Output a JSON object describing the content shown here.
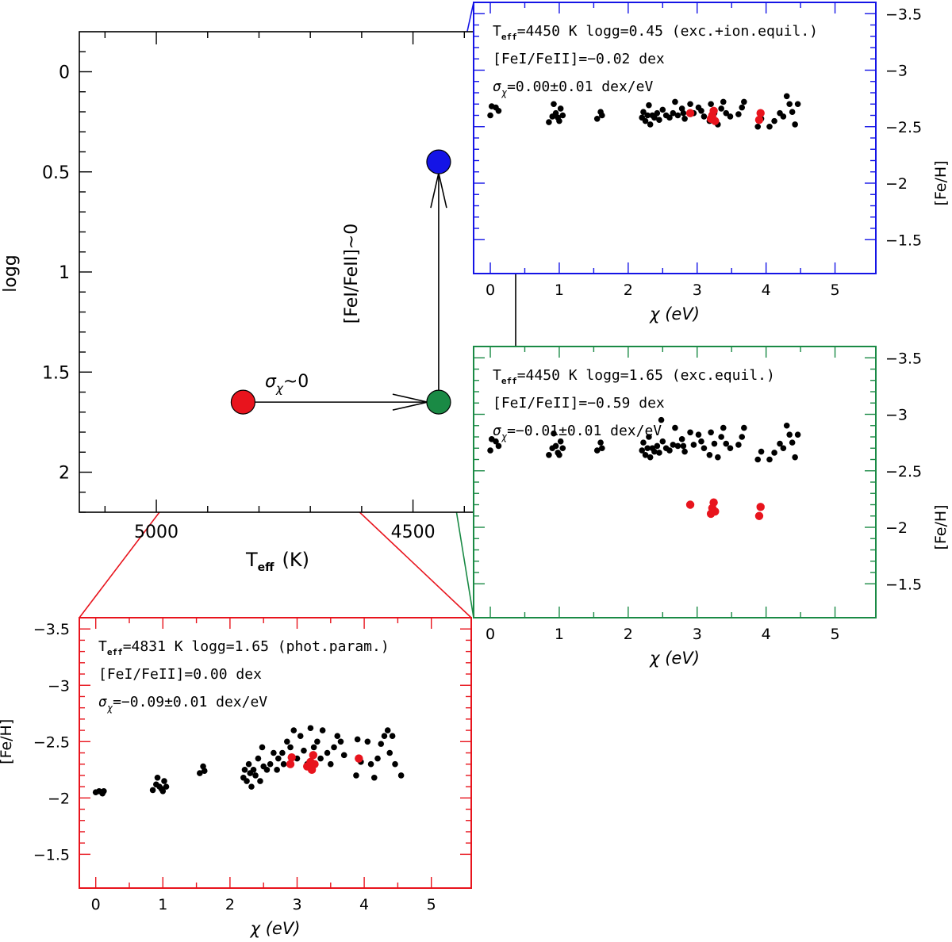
{
  "colors": {
    "red": "#e8141d",
    "green": "#1a8a45",
    "blue": "#1414e6",
    "black": "#000000"
  },
  "chart_data": [
    {
      "type": "scatter",
      "id": "hr",
      "xlabel": "T",
      "xlabel_sub": "eff",
      "xlabel_unit": "(K)",
      "ylabel": "logg",
      "xlim": [
        5150,
        4300
      ],
      "ylim": [
        -0.2,
        2.2
      ],
      "xticklabels": [
        "5000",
        "4500"
      ],
      "yticklabels": [
        "0",
        "0.5",
        "1",
        "1.5",
        "2"
      ],
      "points": [
        {
          "name": "phot",
          "teff": 4831,
          "logg": 1.65,
          "color": "red"
        },
        {
          "name": "exc",
          "teff": 4450,
          "logg": 1.65,
          "color": "green"
        },
        {
          "name": "exc-ion",
          "teff": 4450,
          "logg": 0.45,
          "color": "blue"
        }
      ],
      "arrows": [
        {
          "label": "σ",
          "label_sub": "χ",
          "label_tail": "~0"
        },
        {
          "label": "[FeI/FeII]~0"
        }
      ]
    },
    {
      "type": "scatter",
      "id": "blue",
      "border_color": "blue",
      "xlabel": "χ (eV)",
      "ylabel": "[Fe/H]",
      "xlim": [
        -0.15,
        5.5
      ],
      "ylim": [
        -3.6,
        -1.2
      ],
      "xticklabels": [
        "0",
        "1",
        "2",
        "3",
        "4",
        "5"
      ],
      "yticklabels": [
        "−1.5",
        "−2",
        "−2.5",
        "−3",
        "−3.5"
      ],
      "annotations": {
        "line1": {
          "a": "T",
          "sub": "eff",
          "b": "=4450 K logg=0.45 (exc.+ion.equil.)"
        },
        "line2": "[FeI/FeII]=−0.02 dex",
        "line3": {
          "a": "σ",
          "sub": "χ",
          "b": "=0.00±0.01 dex/eV"
        }
      },
      "feI": [
        [
          0,
          -2.6
        ],
        [
          0.02,
          -2.68
        ],
        [
          0.08,
          -2.67
        ],
        [
          0.12,
          -2.64
        ],
        [
          0.85,
          -2.54
        ],
        [
          0.9,
          -2.59
        ],
        [
          0.92,
          -2.7
        ],
        [
          0.95,
          -2.62
        ],
        [
          0.98,
          -2.58
        ],
        [
          1.0,
          -2.55
        ],
        [
          1.02,
          -2.66
        ],
        [
          1.05,
          -2.6
        ],
        [
          1.55,
          -2.57
        ],
        [
          1.6,
          -2.63
        ],
        [
          1.62,
          -2.6
        ],
        [
          2.2,
          -2.58
        ],
        [
          2.22,
          -2.63
        ],
        [
          2.25,
          -2.55
        ],
        [
          2.28,
          -2.6
        ],
        [
          2.3,
          -2.69
        ],
        [
          2.32,
          -2.52
        ],
        [
          2.35,
          -2.6
        ],
        [
          2.38,
          -2.58
        ],
        [
          2.42,
          -2.62
        ],
        [
          2.45,
          -2.56
        ],
        [
          2.5,
          -2.65
        ],
        [
          2.55,
          -2.6
        ],
        [
          2.6,
          -2.58
        ],
        [
          2.65,
          -2.62
        ],
        [
          2.68,
          -2.72
        ],
        [
          2.72,
          -2.6
        ],
        [
          2.78,
          -2.66
        ],
        [
          2.8,
          -2.62
        ],
        [
          2.82,
          -2.57
        ],
        [
          2.9,
          -2.7
        ],
        [
          2.95,
          -2.62
        ],
        [
          3.02,
          -2.67
        ],
        [
          3.06,
          -2.64
        ],
        [
          3.1,
          -2.59
        ],
        [
          3.18,
          -2.55
        ],
        [
          3.2,
          -2.7
        ],
        [
          3.25,
          -2.62
        ],
        [
          3.3,
          -2.52
        ],
        [
          3.35,
          -2.66
        ],
        [
          3.38,
          -2.72
        ],
        [
          3.42,
          -2.62
        ],
        [
          3.48,
          -2.59
        ],
        [
          3.6,
          -2.61
        ],
        [
          3.65,
          -2.67
        ],
        [
          3.68,
          -2.72
        ],
        [
          3.88,
          -2.5
        ],
        [
          3.93,
          -2.57
        ],
        [
          4.05,
          -2.5
        ],
        [
          4.12,
          -2.55
        ],
        [
          4.2,
          -2.62
        ],
        [
          4.25,
          -2.59
        ],
        [
          4.3,
          -2.77
        ],
        [
          4.34,
          -2.7
        ],
        [
          4.38,
          -2.63
        ],
        [
          4.42,
          -2.52
        ],
        [
          4.46,
          -2.7
        ]
      ],
      "feII": [
        [
          2.9,
          -2.62
        ],
        [
          3.2,
          -2.57
        ],
        [
          3.22,
          -2.6
        ],
        [
          3.24,
          -2.64
        ],
        [
          3.26,
          -2.55
        ],
        [
          3.9,
          -2.56
        ],
        [
          3.92,
          -2.62
        ]
      ]
    },
    {
      "type": "scatter",
      "id": "green",
      "border_color": "green",
      "xlabel": "χ (eV)",
      "ylabel": "[Fe/H]",
      "xlim": [
        -0.15,
        5.5
      ],
      "ylim": [
        -3.6,
        -1.2
      ],
      "xticklabels": [
        "0",
        "1",
        "2",
        "3",
        "4",
        "5"
      ],
      "yticklabels": [
        "−1.5",
        "−2",
        "−2.5",
        "−3",
        "−3.5"
      ],
      "annotations": {
        "line1": {
          "a": "T",
          "sub": "eff",
          "b": "=4450 K logg=1.65 (exc.equil.)"
        },
        "line2": "[FeI/FeII]=−0.59 dex",
        "line3": {
          "a": "σ",
          "sub": "χ",
          "b": "=−0.01±0.01 dex/eV"
        }
      },
      "feI": [
        [
          0,
          -2.68
        ],
        [
          0.02,
          -2.78
        ],
        [
          0.08,
          -2.76
        ],
        [
          0.12,
          -2.72
        ],
        [
          0.85,
          -2.64
        ],
        [
          0.9,
          -2.7
        ],
        [
          0.92,
          -2.83
        ],
        [
          0.95,
          -2.72
        ],
        [
          0.98,
          -2.66
        ],
        [
          1.0,
          -2.64
        ],
        [
          1.02,
          -2.76
        ],
        [
          1.05,
          -2.7
        ],
        [
          1.55,
          -2.68
        ],
        [
          1.6,
          -2.75
        ],
        [
          1.62,
          -2.7
        ],
        [
          2.2,
          -2.68
        ],
        [
          2.22,
          -2.75
        ],
        [
          2.25,
          -2.64
        ],
        [
          2.28,
          -2.7
        ],
        [
          2.3,
          -2.8
        ],
        [
          2.32,
          -2.62
        ],
        [
          2.35,
          -2.7
        ],
        [
          2.38,
          -2.67
        ],
        [
          2.42,
          -2.72
        ],
        [
          2.45,
          -2.66
        ],
        [
          2.48,
          -2.95
        ],
        [
          2.5,
          -2.76
        ],
        [
          2.55,
          -2.7
        ],
        [
          2.6,
          -2.68
        ],
        [
          2.65,
          -2.73
        ],
        [
          2.68,
          -2.88
        ],
        [
          2.72,
          -2.72
        ],
        [
          2.78,
          -2.78
        ],
        [
          2.8,
          -2.72
        ],
        [
          2.82,
          -2.67
        ],
        [
          2.9,
          -2.84
        ],
        [
          2.95,
          -2.73
        ],
        [
          3.02,
          -2.82
        ],
        [
          3.06,
          -2.76
        ],
        [
          3.1,
          -2.7
        ],
        [
          3.18,
          -2.64
        ],
        [
          3.2,
          -2.84
        ],
        [
          3.25,
          -2.74
        ],
        [
          3.3,
          -2.62
        ],
        [
          3.35,
          -2.8
        ],
        [
          3.38,
          -2.88
        ],
        [
          3.42,
          -2.74
        ],
        [
          3.48,
          -2.7
        ],
        [
          3.6,
          -2.73
        ],
        [
          3.65,
          -2.8
        ],
        [
          3.68,
          -2.88
        ],
        [
          3.88,
          -2.6
        ],
        [
          3.93,
          -2.67
        ],
        [
          4.05,
          -2.6
        ],
        [
          4.12,
          -2.66
        ],
        [
          4.2,
          -2.74
        ],
        [
          4.25,
          -2.7
        ],
        [
          4.3,
          -2.9
        ],
        [
          4.34,
          -2.82
        ],
        [
          4.38,
          -2.75
        ],
        [
          4.42,
          -2.62
        ],
        [
          4.46,
          -2.82
        ]
      ],
      "feII": [
        [
          2.9,
          -2.2
        ],
        [
          3.2,
          -2.12
        ],
        [
          3.22,
          -2.17
        ],
        [
          3.24,
          -2.22
        ],
        [
          3.26,
          -2.14
        ],
        [
          3.9,
          -2.1
        ],
        [
          3.92,
          -2.18
        ]
      ]
    },
    {
      "type": "scatter",
      "id": "red",
      "border_color": "red",
      "xlabel": "χ (eV)",
      "ylabel": "[Fe/H]",
      "xlim": [
        -0.15,
        5.5
      ],
      "ylim": [
        -3.6,
        -1.2
      ],
      "xticklabels": [
        "0",
        "1",
        "2",
        "3",
        "4",
        "5"
      ],
      "yticklabels": [
        "−1.5",
        "−2",
        "−2.5",
        "−3",
        "−3.5"
      ],
      "annotations": {
        "line1": {
          "a": "T",
          "sub": "eff",
          "b": "=4831 K logg=1.65 (phot.param.)"
        },
        "line2": "[FeI/FeII]=0.00 dex",
        "line3": {
          "a": "σ",
          "sub": "χ",
          "b": "=−0.09±0.01 dex/eV"
        }
      },
      "feI": [
        [
          0,
          -2.05
        ],
        [
          0.05,
          -2.06
        ],
        [
          0.1,
          -2.04
        ],
        [
          0.12,
          -2.06
        ],
        [
          0.85,
          -2.07
        ],
        [
          0.9,
          -2.12
        ],
        [
          0.92,
          -2.18
        ],
        [
          0.95,
          -2.1
        ],
        [
          0.98,
          -2.08
        ],
        [
          1.0,
          -2.06
        ],
        [
          1.02,
          -2.15
        ],
        [
          1.05,
          -2.1
        ],
        [
          1.55,
          -2.22
        ],
        [
          1.6,
          -2.28
        ],
        [
          1.62,
          -2.24
        ],
        [
          2.2,
          -2.18
        ],
        [
          2.22,
          -2.25
        ],
        [
          2.25,
          -2.15
        ],
        [
          2.28,
          -2.3
        ],
        [
          2.3,
          -2.22
        ],
        [
          2.32,
          -2.1
        ],
        [
          2.35,
          -2.25
        ],
        [
          2.38,
          -2.2
        ],
        [
          2.42,
          -2.35
        ],
        [
          2.45,
          -2.15
        ],
        [
          2.48,
          -2.45
        ],
        [
          2.5,
          -2.28
        ],
        [
          2.55,
          -2.25
        ],
        [
          2.6,
          -2.3
        ],
        [
          2.65,
          -2.4
        ],
        [
          2.7,
          -2.25
        ],
        [
          2.72,
          -2.35
        ],
        [
          2.78,
          -2.4
        ],
        [
          2.8,
          -2.3
        ],
        [
          2.85,
          -2.5
        ],
        [
          2.9,
          -2.45
        ],
        [
          2.95,
          -2.6
        ],
        [
          3.0,
          -2.35
        ],
        [
          3.05,
          -2.55
        ],
        [
          3.1,
          -2.42
        ],
        [
          3.15,
          -2.3
        ],
        [
          3.2,
          -2.62
        ],
        [
          3.25,
          -2.45
        ],
        [
          3.3,
          -2.5
        ],
        [
          3.35,
          -2.35
        ],
        [
          3.38,
          -2.6
        ],
        [
          3.45,
          -2.4
        ],
        [
          3.5,
          -2.3
        ],
        [
          3.55,
          -2.45
        ],
        [
          3.6,
          -2.55
        ],
        [
          3.65,
          -2.5
        ],
        [
          3.7,
          -2.38
        ],
        [
          3.88,
          -2.2
        ],
        [
          3.9,
          -2.52
        ],
        [
          3.95,
          -2.32
        ],
        [
          4.05,
          -2.5
        ],
        [
          4.1,
          -2.3
        ],
        [
          4.15,
          -2.18
        ],
        [
          4.2,
          -2.35
        ],
        [
          4.25,
          -2.48
        ],
        [
          4.3,
          -2.55
        ],
        [
          4.35,
          -2.6
        ],
        [
          4.38,
          -2.4
        ],
        [
          4.42,
          -2.55
        ],
        [
          4.46,
          -2.3
        ],
        [
          4.55,
          -2.2
        ]
      ],
      "feII": [
        [
          2.9,
          -2.3
        ],
        [
          2.92,
          -2.36
        ],
        [
          3.15,
          -2.28
        ],
        [
          3.2,
          -2.32
        ],
        [
          3.22,
          -2.25
        ],
        [
          3.24,
          -2.38
        ],
        [
          3.26,
          -2.3
        ],
        [
          3.92,
          -2.35
        ]
      ]
    }
  ]
}
